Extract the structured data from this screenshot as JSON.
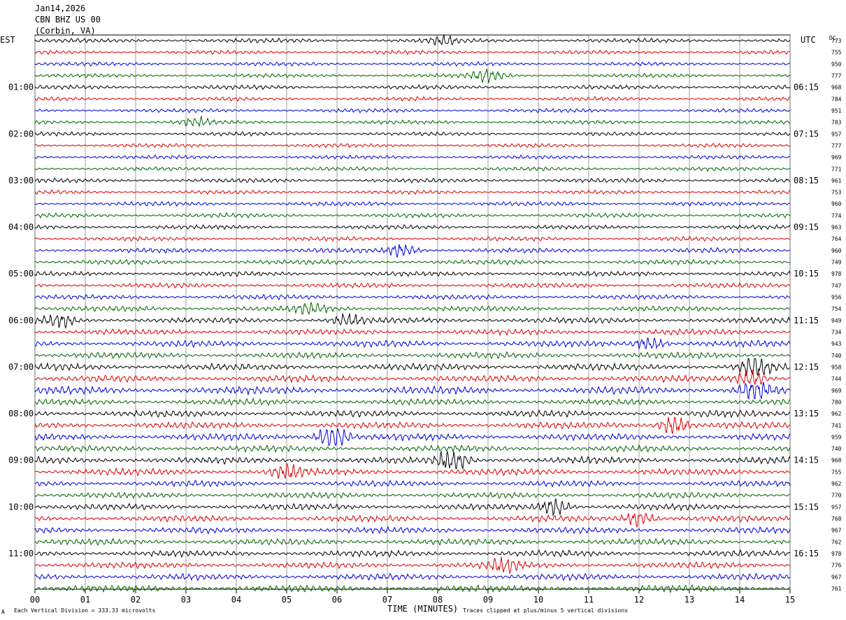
{
  "header": {
    "date": "Jan14,2026",
    "station": "CBN BHZ US 00",
    "location": "(Corbin, VA)"
  },
  "left_axis_title": "EST",
  "right_axis_title": "UTC",
  "dc_label": "DC",
  "footer": {
    "scale_note": "Each Vertical Division =  333.33 microvolts",
    "clip_note": "Traces clipped at plus/minus 5 vertical divisions",
    "corner_mark": "A"
  },
  "colors": [
    "#000000",
    "#dd0000",
    "#0000dd",
    "#006400"
  ],
  "chart_data": {
    "type": "line",
    "title": "Jan14,2026 CBN BHZ US 00 (Corbin, VA)",
    "xlabel": "TIME (MINUTES)",
    "xlim": [
      0,
      15
    ],
    "x_ticks": [
      "00",
      "01",
      "02",
      "03",
      "04",
      "05",
      "06",
      "07",
      "08",
      "09",
      "10",
      "11",
      "12",
      "13",
      "14",
      "15"
    ],
    "trace_minutes": 15,
    "rows": 48,
    "est_labels": [
      "01:00",
      "02:00",
      "03:00",
      "04:00",
      "05:00",
      "06:00",
      "07:00",
      "08:00",
      "09:00",
      "10:00",
      "11:00"
    ],
    "utc_labels": [
      "06:15",
      "07:15",
      "08:15",
      "09:15",
      "10:15",
      "11:15",
      "12:15",
      "13:15",
      "14:15",
      "15:15",
      "16:15"
    ],
    "dc_values": [
      "773",
      "755",
      "950",
      "777",
      "968",
      "784",
      "951",
      "783",
      "957",
      "777",
      "969",
      "771",
      "961",
      "753",
      "960",
      "774",
      "963",
      "764",
      "960",
      "749",
      "978",
      "747",
      "956",
      "754",
      "949",
      "734",
      "943",
      "740",
      "958",
      "744",
      "969",
      "780",
      "962",
      "741",
      "959",
      "740",
      "968",
      "755",
      "962",
      "770",
      "957",
      "768",
      "967",
      "762",
      "978",
      "776",
      "967",
      "761"
    ],
    "amplitude_per_row": [
      0.9,
      0.8,
      0.8,
      0.8,
      0.9,
      0.8,
      0.8,
      0.8,
      0.8,
      0.8,
      0.8,
      0.8,
      0.9,
      0.8,
      0.9,
      0.9,
      0.9,
      0.9,
      1.0,
      1.0,
      1.0,
      1.0,
      1.0,
      1.1,
      1.2,
      1.2,
      1.3,
      1.3,
      1.4,
      1.4,
      1.6,
      1.3,
      1.4,
      1.4,
      1.4,
      1.3,
      1.4,
      1.4,
      1.2,
      1.2,
      1.3,
      1.3,
      1.3,
      1.3,
      1.3,
      1.3,
      1.3,
      1.4
    ],
    "events": [
      {
        "row": 0,
        "minute": 8.1,
        "amp": 1.8
      },
      {
        "row": 3,
        "minute": 9.0,
        "amp": 3.5
      },
      {
        "row": 7,
        "minute": 3.2,
        "amp": 2.0
      },
      {
        "row": 18,
        "minute": 7.3,
        "amp": 3.0
      },
      {
        "row": 23,
        "minute": 5.5,
        "amp": 2.0
      },
      {
        "row": 24,
        "minute": 0.5,
        "amp": 2.2
      },
      {
        "row": 24,
        "minute": 6.2,
        "amp": 2.0
      },
      {
        "row": 26,
        "minute": 12.2,
        "amp": 2.2
      },
      {
        "row": 28,
        "minute": 14.3,
        "amp": 4.0
      },
      {
        "row": 29,
        "minute": 14.2,
        "amp": 2.6
      },
      {
        "row": 30,
        "minute": 14.3,
        "amp": 3.2
      },
      {
        "row": 33,
        "minute": 12.7,
        "amp": 3.0
      },
      {
        "row": 34,
        "minute": 5.9,
        "amp": 3.8
      },
      {
        "row": 36,
        "minute": 8.3,
        "amp": 3.6
      },
      {
        "row": 37,
        "minute": 5.0,
        "amp": 2.0
      },
      {
        "row": 40,
        "minute": 10.3,
        "amp": 3.0
      },
      {
        "row": 41,
        "minute": 12.0,
        "amp": 2.6
      },
      {
        "row": 45,
        "minute": 9.3,
        "amp": 2.4
      }
    ]
  }
}
